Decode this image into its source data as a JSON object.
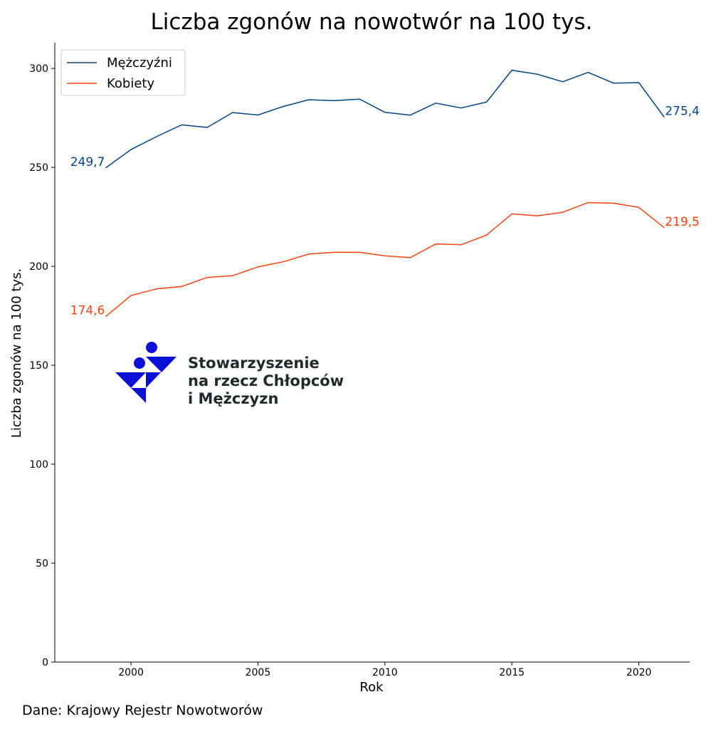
{
  "colors": {
    "men": "#004586",
    "women": "#ff420e",
    "axis": "#000000",
    "logo_blue": "#0c10d6",
    "logo_text": "#1f2a2a"
  },
  "logo": {
    "line1": "Stowarzyszenie",
    "line2": "na rzecz Chłopców",
    "line3": "i Mężczyzn"
  },
  "source": "Dane: Krajowy Rejestr Nowotworów",
  "chart_data": {
    "type": "line",
    "title": "Liczba zgonów na nowotwór na 100 tys.",
    "xlabel": "Rok",
    "ylabel": "Liczba zgonów na 100 tys.",
    "xlim": [
      1997,
      2022
    ],
    "ylim": [
      0,
      313
    ],
    "xticks": [
      2000,
      2005,
      2010,
      2015,
      2020
    ],
    "yticks": [
      0,
      50,
      100,
      150,
      200,
      250,
      300
    ],
    "grid": false,
    "legend_position": "top-left",
    "x": [
      1999,
      2000,
      2001,
      2002,
      2003,
      2004,
      2005,
      2006,
      2007,
      2008,
      2009,
      2010,
      2011,
      2012,
      2013,
      2014,
      2015,
      2016,
      2017,
      2018,
      2019,
      2020,
      2021
    ],
    "series": [
      {
        "name": "Mężczyźni",
        "color": "#004586",
        "values": [
          249.7,
          259,
          265.5,
          271.5,
          270.2,
          277.7,
          276.5,
          280.8,
          284.2,
          283.7,
          284.5,
          277.8,
          276.4,
          282.5,
          280,
          283,
          299.1,
          297.1,
          293.3,
          298,
          292.6,
          292.8,
          275.4
        ],
        "first_label": "249,7",
        "last_label": "275,4"
      },
      {
        "name": "Kobiety",
        "color": "#ff420e",
        "values": [
          174.6,
          185.2,
          188.6,
          189.8,
          194.4,
          195.3,
          199.7,
          202.3,
          206.2,
          207.1,
          207.1,
          205.3,
          204.4,
          211.3,
          210.9,
          215.8,
          226.5,
          225.5,
          227.3,
          232.2,
          231.9,
          229.8,
          219.5
        ],
        "first_label": "174,6",
        "last_label": "219,5"
      }
    ]
  }
}
